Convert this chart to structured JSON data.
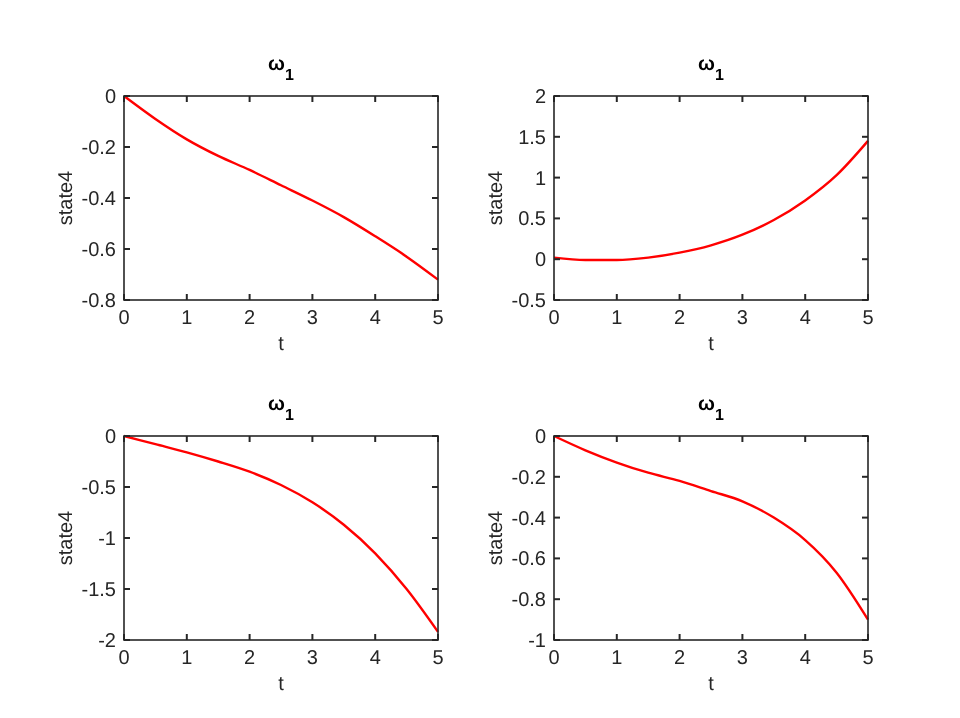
{
  "chart_data": [
    {
      "type": "line",
      "title": "ω$_{1}$",
      "xlabel": "t",
      "ylabel": "state4",
      "x": [
        0,
        0.5,
        1,
        1.5,
        2,
        2.5,
        3,
        3.5,
        4,
        4.5,
        5
      ],
      "series": [
        {
          "color": "#ff0000",
          "values": [
            0,
            -0.09,
            -0.17,
            -0.235,
            -0.29,
            -0.35,
            -0.41,
            -0.475,
            -0.55,
            -0.63,
            -0.72
          ]
        }
      ],
      "xlim": [
        0,
        5
      ],
      "xticks": [
        0,
        1,
        2,
        3,
        4,
        5
      ],
      "ylim": [
        -0.8,
        0
      ],
      "yticks": [
        -0.8,
        -0.6,
        -0.4,
        -0.2,
        0
      ],
      "grid": false
    },
    {
      "type": "line",
      "title": "ω$_{1}$",
      "xlabel": "t",
      "ylabel": "state4",
      "x": [
        0,
        0.5,
        1,
        1.5,
        2,
        2.5,
        3,
        3.5,
        4,
        4.5,
        5
      ],
      "series": [
        {
          "color": "#ff0000",
          "values": [
            0.02,
            -0.01,
            -0.01,
            0.02,
            0.08,
            0.17,
            0.3,
            0.48,
            0.72,
            1.03,
            1.45
          ]
        }
      ],
      "xlim": [
        0,
        5
      ],
      "xticks": [
        0,
        1,
        2,
        3,
        4,
        5
      ],
      "ylim": [
        -0.5,
        2
      ],
      "yticks": [
        -0.5,
        0,
        0.5,
        1,
        1.5,
        2
      ],
      "grid": false
    },
    {
      "type": "line",
      "title": "ω$_{1}$",
      "xlabel": "t",
      "ylabel": "state4",
      "x": [
        0,
        0.5,
        1,
        1.5,
        2,
        2.5,
        3,
        3.5,
        4,
        4.5,
        5
      ],
      "series": [
        {
          "color": "#ff0000",
          "values": [
            0,
            -0.08,
            -0.16,
            -0.25,
            -0.35,
            -0.48,
            -0.65,
            -0.87,
            -1.15,
            -1.5,
            -1.92
          ]
        }
      ],
      "xlim": [
        0,
        5
      ],
      "xticks": [
        0,
        1,
        2,
        3,
        4,
        5
      ],
      "ylim": [
        -2,
        0
      ],
      "yticks": [
        -2,
        -1.5,
        -1,
        -0.5,
        0
      ],
      "grid": false
    },
    {
      "type": "line",
      "title": "ω$_{1}$",
      "xlabel": "t",
      "ylabel": "state4",
      "x": [
        0,
        0.5,
        1,
        1.5,
        2,
        2.5,
        3,
        3.5,
        4,
        4.5,
        5
      ],
      "series": [
        {
          "color": "#ff0000",
          "values": [
            0,
            -0.07,
            -0.13,
            -0.18,
            -0.22,
            -0.27,
            -0.32,
            -0.4,
            -0.51,
            -0.67,
            -0.9
          ]
        }
      ],
      "xlim": [
        0,
        5
      ],
      "xticks": [
        0,
        1,
        2,
        3,
        4,
        5
      ],
      "ylim": [
        -1,
        0
      ],
      "yticks": [
        -1,
        -0.8,
        -0.6,
        -0.4,
        -0.2,
        0
      ],
      "grid": false
    }
  ]
}
